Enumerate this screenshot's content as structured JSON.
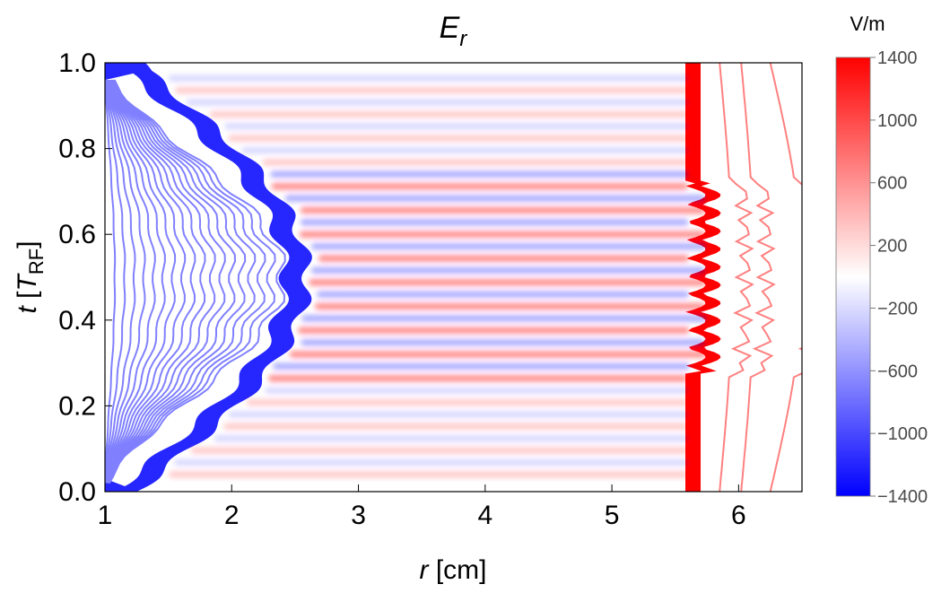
{
  "chart_data": {
    "type": "heatmap",
    "title": "E",
    "title_subscript": "r",
    "xlabel_symbol": "r",
    "xlabel_unit": "[cm]",
    "ylabel_symbol": "t",
    "ylabel_unit_open": "[",
    "ylabel_unit_symbol": "T",
    "ylabel_unit_subscript": "RF",
    "ylabel_unit_close": "]",
    "xlim": [
      1,
      6.5
    ],
    "ylim": [
      0,
      1
    ],
    "xticks": [
      1,
      2,
      3,
      4,
      5,
      6
    ],
    "yticks": [
      "0.0",
      "0.2",
      "0.4",
      "0.6",
      "0.8",
      "1.0"
    ],
    "colorbar": {
      "unit_label": "V/m",
      "range": [
        -1400,
        1400
      ],
      "ticks": [
        "1400",
        "1000",
        "600",
        "200",
        "−200",
        "−600",
        "−1000",
        "−1400"
      ],
      "tick_values": [
        1400,
        1000,
        600,
        200,
        -200,
        -600,
        -1000,
        -1400
      ],
      "colors": {
        "negative": "#0000ff",
        "zero": "#ffffff",
        "positive": "#ff0000"
      }
    },
    "regions": {
      "negative_boundary_r": 2.6,
      "positive_boundary_r": 5.7,
      "oscillation_band_t": [
        0.25,
        0.75
      ]
    },
    "contours": {
      "negative_color": "#8080ff",
      "positive_color": "#ff8080"
    }
  }
}
